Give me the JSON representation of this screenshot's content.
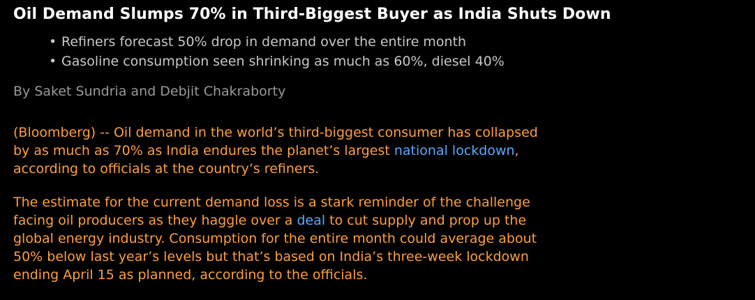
{
  "headline": "Oil Demand Slumps 70% in Third-Biggest Buyer as India Shuts Down",
  "bullets": [
    "Refiners forecast 50% drop in demand over the entire month",
    "Gasoline consumption seen shrinking as much as 60%, diesel 40%"
  ],
  "byline": "By Saket Sundria and Debjit Chakraborty",
  "colors": {
    "background": "#000000",
    "headline": "#ffffff",
    "bullets": "#c8c8c8",
    "byline": "#9a9a9a",
    "body": "#ff9e3d",
    "link": "#5aa9ff"
  },
  "paragraph1": {
    "line1": "(Bloomberg) -- Oil demand in the world’s third-biggest consumer has collapsed",
    "line2_before": "by as much as 70% as India endures the planet’s largest ",
    "line2_link": "national lockdown",
    "line2_after": ",",
    "line3": "according to officials at the country’s refiners."
  },
  "paragraph2": {
    "line1": "The estimate for the current demand loss is a stark reminder of the challenge",
    "line2_before": "facing oil producers as they haggle over a ",
    "line2_link": "deal",
    "line2_after": " to cut supply and prop up the",
    "line3": "global energy industry. Consumption for the entire month could average about",
    "line4": "50% below last year’s levels but that’s based on India’s three-week lockdown",
    "line5": "ending April 15 as planned, according to the officials."
  }
}
